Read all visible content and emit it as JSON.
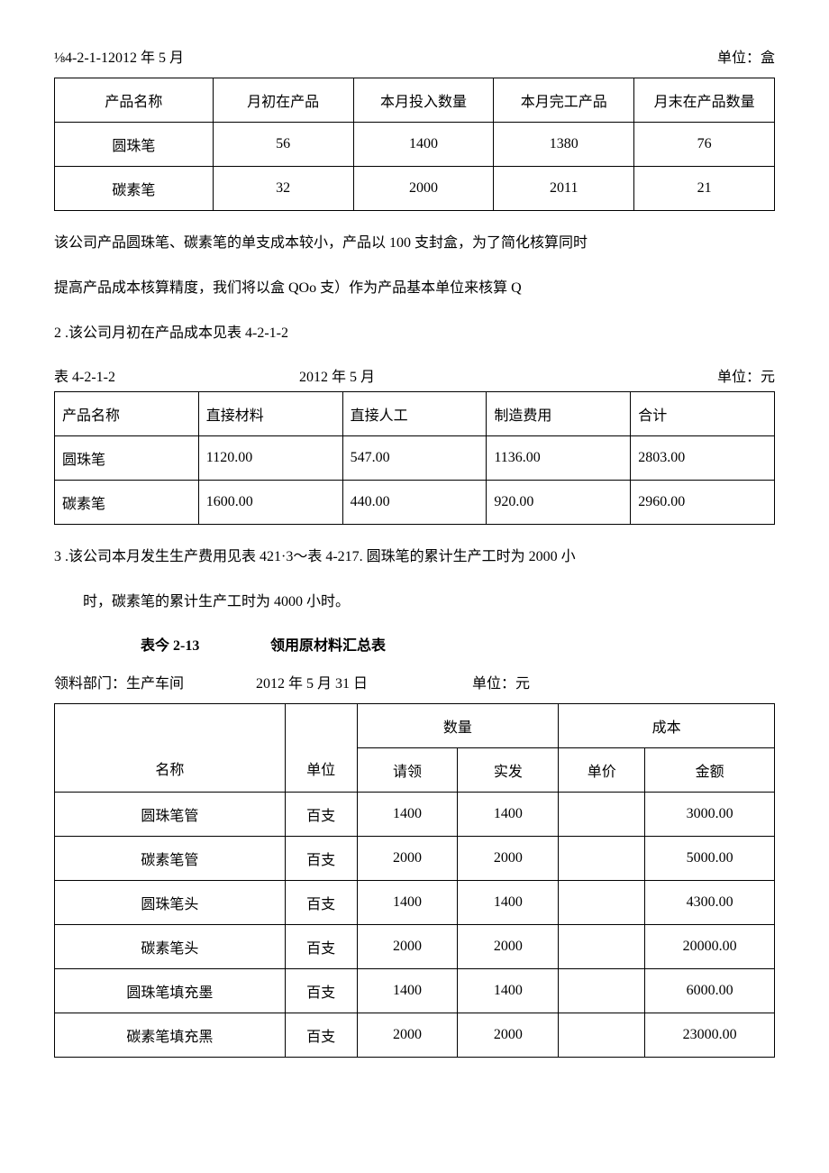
{
  "header1": {
    "left": "⅛4-2-1-12012 年 5 月",
    "right": "单位：盒"
  },
  "table1": {
    "columns": [
      "产品名称",
      "月初在产品",
      "本月投入数量",
      "本月完工产品",
      "月末在产品数量"
    ],
    "rows": [
      [
        "圆珠笔",
        "56",
        "1400",
        "1380",
        "76"
      ],
      [
        "碳素笔",
        "32",
        "2000",
        "2011",
        "21"
      ]
    ]
  },
  "para1a": "该公司产品圆珠笔、碳素笔的单支成本较小，产品以 100 支封盒，为了简化核算同时",
  "para1b": "提高产品成本核算精度，我们将以盒 QOo 支）作为产品基本单位来核算 Q",
  "para2": "2 .该公司月初在产品成本见表 4-2-1-2",
  "caption2": {
    "left": "表 4-2-1-2",
    "mid": "2012 年 5 月",
    "right": "单位：元"
  },
  "table2": {
    "columns": [
      "产品名称",
      "直接材料",
      "直接人工",
      "制造费用",
      "合计"
    ],
    "rows": [
      [
        "圆珠笔",
        "1120.00",
        "547.00",
        "1136.00",
        "2803.00"
      ],
      [
        "碳素笔",
        "1600.00",
        "440.00",
        "920.00",
        "2960.00"
      ]
    ]
  },
  "para3a": "3 .该公司本月发生生产费用见表 421·3〜表 4-217. 圆珠笔的累计生产工时为 2000 小",
  "para3b": "时，碳素笔的累计生产工时为 4000 小时。",
  "boldcap": {
    "left": "表今 2-13",
    "right": "领用原材料汇总表"
  },
  "header3": {
    "seg1": "领料部门：生产车间",
    "seg2": "2012 年 5 月 31 日",
    "seg3": "单位：元"
  },
  "table3": {
    "header_top": {
      "name": "",
      "unit": "",
      "qty": "数量",
      "cost": "成本"
    },
    "header_sub": {
      "name": "名称",
      "unit": "单位",
      "q1": "请领",
      "q2": "实发",
      "price": "单价",
      "amount": "金额"
    },
    "rows": [
      [
        "圆珠笔管",
        "百支",
        "1400",
        "1400",
        "",
        "3000.00"
      ],
      [
        "碳素笔管",
        "百支",
        "2000",
        "2000",
        "",
        "5000.00"
      ],
      [
        "圆珠笔头",
        "百支",
        "1400",
        "1400",
        "",
        "4300.00"
      ],
      [
        "碳素笔头",
        "百支",
        "2000",
        "2000",
        "",
        "20000.00"
      ],
      [
        "圆珠笔填充墨",
        "百支",
        "1400",
        "1400",
        "",
        "6000.00"
      ],
      [
        "碳素笔填充黑",
        "百支",
        "2000",
        "2000",
        "",
        "23000.00"
      ]
    ]
  }
}
